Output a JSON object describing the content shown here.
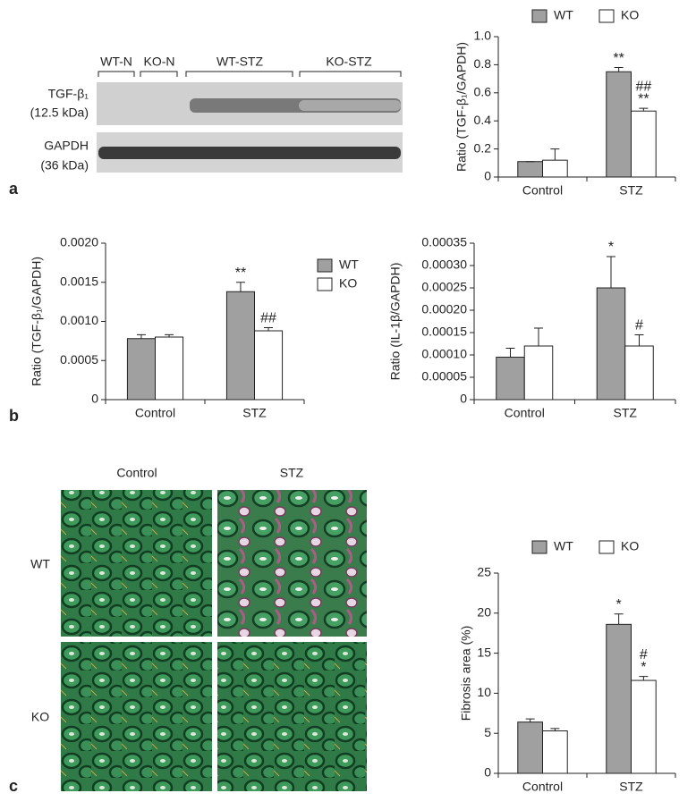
{
  "figure": {
    "panels": [
      "a",
      "b",
      "c"
    ],
    "blot": {
      "lanes": [
        "WT-N",
        "KO-N",
        "WT-STZ",
        "KO-STZ"
      ],
      "rows": [
        {
          "name": "TGF-β₁",
          "size": "(12.5 kDa)"
        },
        {
          "name": "GAPDH",
          "size": "(36 kDa)"
        }
      ]
    },
    "histology": {
      "columns": [
        "Control",
        "STZ"
      ],
      "rows": [
        "WT",
        "KO"
      ]
    }
  },
  "chart_data": [
    {
      "type": "bar",
      "ylabel": "Ratio (TGF-β₁/GAPDH)",
      "categories": [
        "Control",
        "STZ"
      ],
      "series": [
        {
          "name": "WT",
          "color": "#a0a0a0",
          "values": [
            0.11,
            0.75
          ],
          "errors": [
            0,
            0.03
          ],
          "annotations": [
            null,
            [
              "**"
            ]
          ]
        },
        {
          "name": "KO",
          "color": "#ffffff",
          "values": [
            0.12,
            0.47
          ],
          "errors": [
            0.08,
            0.02
          ],
          "annotations": [
            null,
            [
              "##",
              "**"
            ]
          ]
        }
      ],
      "ylim": [
        0,
        1
      ],
      "yticks": [
        0,
        0.2,
        0.4,
        0.6,
        0.8,
        {
          "value": 1,
          "label": "1.0"
        }
      ],
      "legend": "top"
    },
    {
      "type": "bar",
      "ylabel": "Ratio (TGF-β₁/GAPDH)",
      "categories": [
        "Control",
        "STZ"
      ],
      "series": [
        {
          "name": "WT",
          "color": "#a0a0a0",
          "values": [
            0.00078,
            0.00138
          ],
          "errors": [
            5e-05,
            0.00012
          ],
          "annotations": [
            null,
            [
              "**"
            ]
          ]
        },
        {
          "name": "KO",
          "color": "#ffffff",
          "values": [
            0.0008,
            0.00088
          ],
          "errors": [
            3e-05,
            4e-05
          ],
          "annotations": [
            null,
            [
              "##"
            ]
          ]
        }
      ],
      "ylim": [
        0,
        0.002
      ],
      "yticks": [
        0,
        0.0005,
        {
          "value": 0.001,
          "label": "0.0010"
        },
        0.0015,
        {
          "value": 0.002,
          "label": "0.0020"
        }
      ],
      "legend": "right"
    },
    {
      "type": "bar",
      "ylabel": "Ratio (IL-1β/GAPDH)",
      "categories": [
        "Control",
        "STZ"
      ],
      "series": [
        {
          "color": "#a0a0a0",
          "values": [
            9.5e-05,
            0.00025
          ],
          "errors": [
            2e-05,
            7e-05
          ],
          "annotations": [
            null,
            [
              "*"
            ]
          ]
        },
        {
          "color": "#ffffff",
          "values": [
            0.00012,
            0.00012
          ],
          "errors": [
            4e-05,
            2.5e-05
          ],
          "annotations": [
            null,
            [
              "#"
            ]
          ]
        }
      ],
      "ylim": [
        0,
        0.00035
      ],
      "yticks": [
        0,
        5e-05,
        {
          "value": 0.0001,
          "label": "0.00010"
        },
        0.00015,
        {
          "value": 0.0002,
          "label": "0.00020"
        },
        0.00025,
        {
          "value": 0.0003,
          "label": "0.00030"
        },
        0.00035
      ]
    },
    {
      "type": "bar",
      "ylabel": "Fibrosis area (%)",
      "categories": [
        "Control",
        "STZ"
      ],
      "series": [
        {
          "name": "WT",
          "color": "#a0a0a0",
          "values": [
            6.4,
            18.6
          ],
          "errors": [
            0.4,
            1.3
          ],
          "annotations": [
            null,
            [
              "*"
            ]
          ]
        },
        {
          "name": "KO",
          "color": "#ffffff",
          "values": [
            5.3,
            11.6
          ],
          "errors": [
            0.3,
            0.5
          ],
          "annotations": [
            null,
            [
              "#",
              "*"
            ]
          ]
        }
      ],
      "ylim": [
        0,
        25
      ],
      "yticks": [
        0,
        5,
        10,
        15,
        20,
        25
      ],
      "legend": "top"
    }
  ]
}
